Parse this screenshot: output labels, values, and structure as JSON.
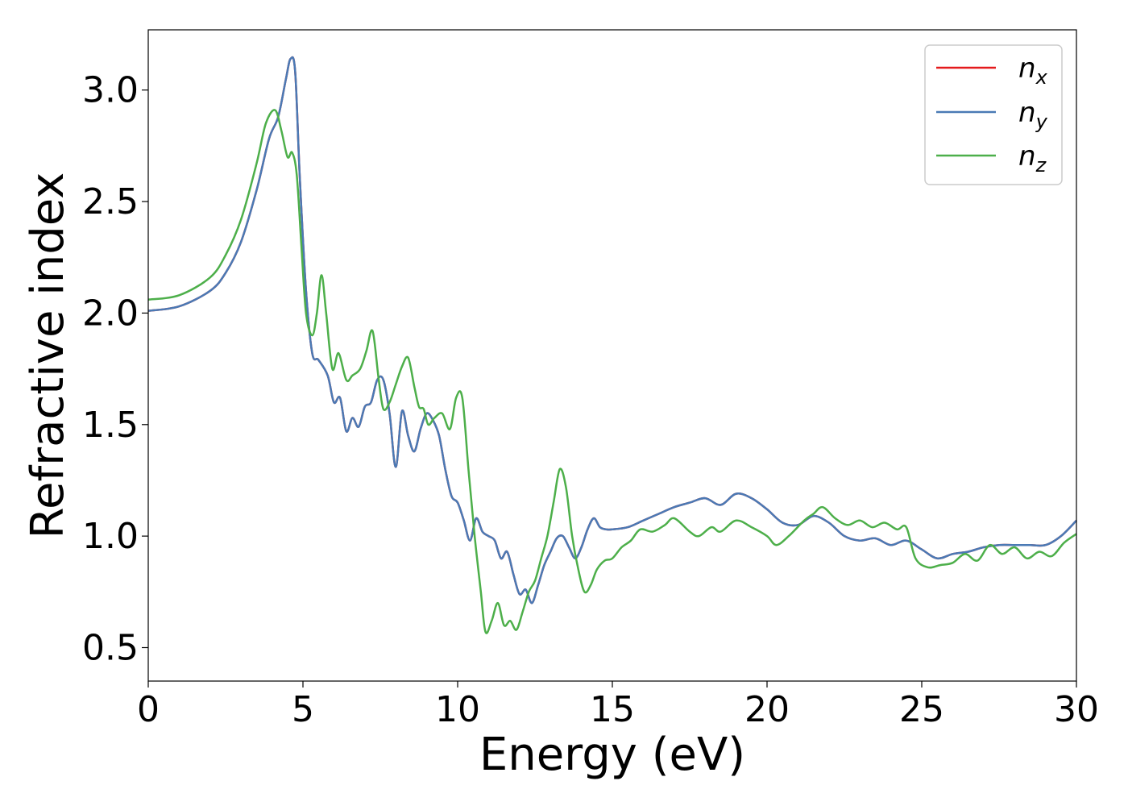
{
  "chart_data": {
    "type": "line",
    "xlabel": "Energy (eV)",
    "ylabel": "Refractive index",
    "xlim": [
      0,
      30
    ],
    "ylim": [
      0.35,
      3.27
    ],
    "x_ticks": [
      0,
      5,
      10,
      15,
      20,
      25,
      30
    ],
    "x_tick_labels": [
      "0",
      "5",
      "10",
      "15",
      "20",
      "25",
      "30"
    ],
    "y_ticks": [
      0.5,
      1.0,
      1.5,
      2.0,
      2.5,
      3.0
    ],
    "y_tick_labels": [
      "0.5",
      "1.0",
      "1.5",
      "2.0",
      "2.5",
      "3.0"
    ],
    "grid": false,
    "legend_position": "top-right",
    "series": [
      {
        "name": "n_x",
        "legend_base": "n",
        "legend_sub": "x",
        "color": "#e41a1c",
        "x": [
          0,
          1,
          2,
          2.5,
          3,
          3.5,
          3.9,
          4.2,
          4.45,
          4.6,
          4.75,
          4.9,
          5.1,
          5.3,
          5.5,
          5.8,
          6.0,
          6.2,
          6.4,
          6.6,
          6.8,
          7.0,
          7.2,
          7.4,
          7.6,
          7.8,
          8.0,
          8.2,
          8.4,
          8.6,
          8.8,
          9.0,
          9.2,
          9.4,
          9.6,
          9.8,
          10.0,
          10.2,
          10.4,
          10.6,
          10.8,
          11.0,
          11.2,
          11.4,
          11.6,
          11.8,
          12.0,
          12.2,
          12.4,
          12.6,
          12.8,
          13.0,
          13.2,
          13.4,
          13.6,
          13.8,
          14.0,
          14.2,
          14.4,
          14.6,
          14.8,
          15.0,
          15.5,
          16.0,
          16.5,
          17.0,
          17.5,
          18.0,
          18.5,
          19.0,
          19.5,
          20.0,
          20.5,
          21.0,
          21.5,
          22.0,
          22.5,
          23.0,
          23.5,
          24.0,
          24.5,
          25.0,
          25.5,
          26.0,
          26.5,
          27.0,
          27.5,
          28.0,
          28.5,
          29.0,
          29.5,
          30.0
        ],
        "y": [
          2.01,
          2.03,
          2.1,
          2.18,
          2.32,
          2.55,
          2.78,
          2.88,
          3.05,
          3.14,
          3.08,
          2.6,
          2.1,
          1.82,
          1.79,
          1.72,
          1.6,
          1.62,
          1.47,
          1.53,
          1.49,
          1.58,
          1.6,
          1.7,
          1.7,
          1.55,
          1.31,
          1.56,
          1.45,
          1.38,
          1.48,
          1.55,
          1.52,
          1.45,
          1.3,
          1.18,
          1.15,
          1.07,
          0.98,
          1.08,
          1.02,
          1.0,
          0.98,
          0.9,
          0.93,
          0.83,
          0.74,
          0.76,
          0.7,
          0.78,
          0.87,
          0.93,
          0.99,
          1.0,
          0.95,
          0.9,
          0.95,
          1.03,
          1.08,
          1.04,
          1.03,
          1.03,
          1.04,
          1.07,
          1.1,
          1.13,
          1.15,
          1.17,
          1.14,
          1.19,
          1.17,
          1.12,
          1.06,
          1.05,
          1.09,
          1.06,
          1.0,
          0.98,
          0.99,
          0.96,
          0.98,
          0.94,
          0.9,
          0.92,
          0.93,
          0.95,
          0.96,
          0.96,
          0.96,
          0.96,
          1.0,
          1.07
        ]
      },
      {
        "name": "n_y",
        "legend_base": "n",
        "legend_sub": "y",
        "color": "#4a7ab5",
        "x": [
          0,
          1,
          2,
          2.5,
          3,
          3.5,
          3.9,
          4.2,
          4.45,
          4.6,
          4.75,
          4.9,
          5.1,
          5.3,
          5.5,
          5.8,
          6.0,
          6.2,
          6.4,
          6.6,
          6.8,
          7.0,
          7.2,
          7.4,
          7.6,
          7.8,
          8.0,
          8.2,
          8.4,
          8.6,
          8.8,
          9.0,
          9.2,
          9.4,
          9.6,
          9.8,
          10.0,
          10.2,
          10.4,
          10.6,
          10.8,
          11.0,
          11.2,
          11.4,
          11.6,
          11.8,
          12.0,
          12.2,
          12.4,
          12.6,
          12.8,
          13.0,
          13.2,
          13.4,
          13.6,
          13.8,
          14.0,
          14.2,
          14.4,
          14.6,
          14.8,
          15.0,
          15.5,
          16.0,
          16.5,
          17.0,
          17.5,
          18.0,
          18.5,
          19.0,
          19.5,
          20.0,
          20.5,
          21.0,
          21.5,
          22.0,
          22.5,
          23.0,
          23.5,
          24.0,
          24.5,
          25.0,
          25.5,
          26.0,
          26.5,
          27.0,
          27.5,
          28.0,
          28.5,
          29.0,
          29.5,
          30.0
        ],
        "y": [
          2.01,
          2.03,
          2.1,
          2.18,
          2.32,
          2.55,
          2.78,
          2.88,
          3.05,
          3.14,
          3.08,
          2.6,
          2.1,
          1.82,
          1.79,
          1.72,
          1.6,
          1.62,
          1.47,
          1.53,
          1.49,
          1.58,
          1.6,
          1.7,
          1.7,
          1.55,
          1.31,
          1.56,
          1.45,
          1.38,
          1.48,
          1.55,
          1.52,
          1.45,
          1.3,
          1.18,
          1.15,
          1.07,
          0.98,
          1.08,
          1.02,
          1.0,
          0.98,
          0.9,
          0.93,
          0.83,
          0.74,
          0.76,
          0.7,
          0.78,
          0.87,
          0.93,
          0.99,
          1.0,
          0.95,
          0.9,
          0.95,
          1.03,
          1.08,
          1.04,
          1.03,
          1.03,
          1.04,
          1.07,
          1.1,
          1.13,
          1.15,
          1.17,
          1.14,
          1.19,
          1.17,
          1.12,
          1.06,
          1.05,
          1.09,
          1.06,
          1.0,
          0.98,
          0.99,
          0.96,
          0.98,
          0.94,
          0.9,
          0.92,
          0.93,
          0.95,
          0.96,
          0.96,
          0.96,
          0.96,
          1.0,
          1.07
        ]
      },
      {
        "name": "n_z",
        "legend_base": "n",
        "legend_sub": "z",
        "color": "#4daf4a",
        "x": [
          0,
          1,
          2,
          2.5,
          3,
          3.5,
          3.8,
          4.1,
          4.3,
          4.5,
          4.65,
          4.8,
          4.95,
          5.1,
          5.3,
          5.45,
          5.6,
          5.75,
          5.95,
          6.15,
          6.4,
          6.6,
          6.85,
          7.05,
          7.25,
          7.45,
          7.6,
          7.8,
          8.0,
          8.2,
          8.4,
          8.6,
          8.75,
          8.9,
          9.05,
          9.25,
          9.5,
          9.75,
          9.95,
          10.15,
          10.35,
          10.55,
          10.75,
          10.9,
          11.1,
          11.3,
          11.5,
          11.7,
          11.9,
          12.1,
          12.3,
          12.5,
          12.7,
          12.9,
          13.1,
          13.3,
          13.5,
          13.7,
          13.9,
          14.1,
          14.3,
          14.5,
          14.75,
          15.0,
          15.3,
          15.6,
          15.9,
          16.3,
          16.7,
          17.0,
          17.5,
          17.8,
          18.2,
          18.5,
          19.0,
          19.5,
          20.0,
          20.3,
          20.7,
          21.2,
          21.5,
          21.8,
          22.2,
          22.6,
          23.0,
          23.4,
          23.8,
          24.2,
          24.5,
          24.8,
          25.2,
          25.6,
          26.0,
          26.4,
          26.8,
          27.2,
          27.6,
          28.0,
          28.4,
          28.8,
          29.2,
          29.6,
          30.0
        ],
        "y": [
          2.06,
          2.08,
          2.16,
          2.26,
          2.42,
          2.67,
          2.85,
          2.91,
          2.82,
          2.7,
          2.72,
          2.62,
          2.3,
          2.0,
          1.9,
          2.0,
          2.17,
          2.0,
          1.75,
          1.82,
          1.7,
          1.72,
          1.75,
          1.83,
          1.92,
          1.7,
          1.57,
          1.6,
          1.68,
          1.76,
          1.8,
          1.67,
          1.58,
          1.57,
          1.5,
          1.53,
          1.55,
          1.48,
          1.62,
          1.62,
          1.3,
          1.0,
          0.75,
          0.57,
          0.62,
          0.7,
          0.6,
          0.62,
          0.58,
          0.66,
          0.75,
          0.8,
          0.9,
          1.0,
          1.15,
          1.3,
          1.22,
          1.0,
          0.85,
          0.75,
          0.78,
          0.85,
          0.89,
          0.9,
          0.95,
          0.98,
          1.03,
          1.02,
          1.05,
          1.08,
          1.02,
          1.0,
          1.04,
          1.02,
          1.07,
          1.04,
          1.0,
          0.96,
          1.0,
          1.07,
          1.1,
          1.13,
          1.08,
          1.05,
          1.07,
          1.04,
          1.06,
          1.03,
          1.04,
          0.9,
          0.86,
          0.87,
          0.88,
          0.92,
          0.89,
          0.96,
          0.92,
          0.95,
          0.9,
          0.93,
          0.91,
          0.97,
          1.01
        ]
      }
    ]
  }
}
